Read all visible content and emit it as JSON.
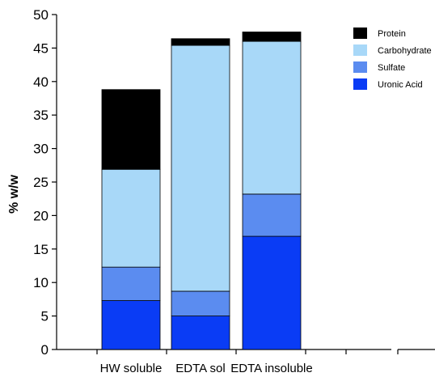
{
  "chart_data": {
    "type": "bar",
    "stacked": true,
    "categories": [
      "HW soluble",
      "EDTA sol",
      "EDTA insoluble"
    ],
    "series": [
      {
        "name": "Uronic Acid",
        "color": "#0a3cf5",
        "values": [
          7.3,
          5.0,
          16.9
        ]
      },
      {
        "name": "Sulfate",
        "color": "#5b8cf0",
        "values": [
          5.0,
          3.7,
          6.3
        ]
      },
      {
        "name": "Carbohydrate",
        "color": "#a8d8f8",
        "values": [
          14.6,
          36.7,
          22.8
        ]
      },
      {
        "name": "Protein",
        "color": "#000000",
        "values": [
          11.9,
          1.0,
          1.4
        ]
      }
    ],
    "ylabel": "% w/w",
    "xlabel": "",
    "ylim": [
      0,
      50
    ],
    "yticks": [
      "0",
      "5",
      "10",
      "15",
      "20",
      "25",
      "30",
      "35",
      "40",
      "45",
      "50"
    ],
    "legend_order": [
      "Protein",
      "Carbohydrate",
      "Sulfate",
      "Uronic Acid"
    ],
    "legend_position": "top-right",
    "grid": false
  }
}
